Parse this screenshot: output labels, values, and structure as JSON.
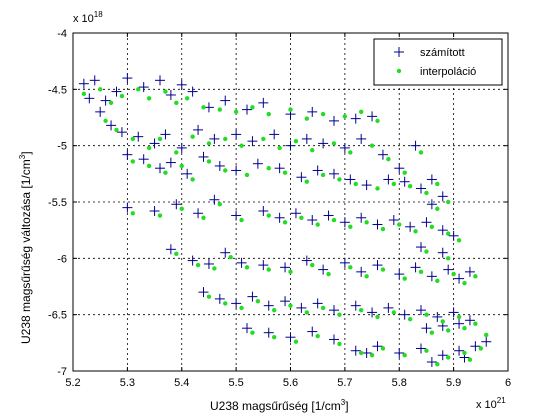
{
  "figure": {
    "ylabel_text": "U238  magsűrűség változása [1/cm",
    "ylabel_sup": "3",
    "ylabel_end": "]",
    "xlabel_text": "U238  magsűrűség [1/cm",
    "xlabel_sup": "3",
    "xlabel_end": "]",
    "y_exponent_base": "x 10",
    "y_exponent_power": "18",
    "x_exponent_base": "x 10",
    "x_exponent_power": "21"
  },
  "chart_data": {
    "type": "scatter",
    "xlim": [
      5.2,
      6.0
    ],
    "ylim": [
      -7.0,
      -4.0
    ],
    "x_scale_exponent": 21,
    "y_scale_exponent": 18,
    "xticks": [
      "5.2",
      "5.3",
      "5.4",
      "5.5",
      "5.6",
      "5.7",
      "5.8",
      "5.9",
      "6"
    ],
    "yticks": [
      "-4",
      "-4.5",
      "-5",
      "-5.5",
      "-6",
      "-6.5",
      "-7"
    ],
    "xtick_values": [
      5.2,
      5.3,
      5.4,
      5.5,
      5.6,
      5.7,
      5.8,
      5.9,
      6.0
    ],
    "ytick_values": [
      -4.0,
      -4.5,
      -5.0,
      -5.5,
      -6.0,
      -6.5,
      -7.0
    ],
    "grid": true,
    "legend_position": "top-right",
    "series": [
      {
        "name": "számított",
        "marker": "+",
        "color": "#00008b",
        "points": [
          [
            5.22,
            -4.45
          ],
          [
            5.24,
            -4.42
          ],
          [
            5.23,
            -4.58
          ],
          [
            5.26,
            -4.6
          ],
          [
            5.28,
            -4.52
          ],
          [
            5.3,
            -4.4
          ],
          [
            5.33,
            -4.48
          ],
          [
            5.36,
            -4.42
          ],
          [
            5.38,
            -4.55
          ],
          [
            5.4,
            -4.46
          ],
          [
            5.42,
            -4.52
          ],
          [
            5.45,
            -4.66
          ],
          [
            5.48,
            -4.6
          ],
          [
            5.52,
            -4.68
          ],
          [
            5.55,
            -4.62
          ],
          [
            5.6,
            -4.72
          ],
          [
            5.64,
            -4.7
          ],
          [
            5.68,
            -4.78
          ],
          [
            5.72,
            -4.76
          ],
          [
            5.75,
            -4.74
          ],
          [
            5.25,
            -4.7
          ],
          [
            5.27,
            -4.82
          ],
          [
            5.29,
            -4.88
          ],
          [
            5.32,
            -4.92
          ],
          [
            5.35,
            -4.98
          ],
          [
            5.37,
            -4.9
          ],
          [
            5.4,
            -5.02
          ],
          [
            5.43,
            -4.86
          ],
          [
            5.46,
            -4.94
          ],
          [
            5.5,
            -4.9
          ],
          [
            5.53,
            -4.96
          ],
          [
            5.57,
            -4.9
          ],
          [
            5.6,
            -5.0
          ],
          [
            5.63,
            -4.94
          ],
          [
            5.66,
            -4.98
          ],
          [
            5.7,
            -5.02
          ],
          [
            5.73,
            -4.94
          ],
          [
            5.77,
            -5.08
          ],
          [
            5.8,
            -5.2
          ],
          [
            5.83,
            -5.0
          ],
          [
            5.3,
            -5.08
          ],
          [
            5.33,
            -5.12
          ],
          [
            5.36,
            -5.2
          ],
          [
            5.38,
            -5.15
          ],
          [
            5.41,
            -5.25
          ],
          [
            5.44,
            -5.1
          ],
          [
            5.47,
            -5.18
          ],
          [
            5.5,
            -5.22
          ],
          [
            5.54,
            -5.16
          ],
          [
            5.58,
            -5.2
          ],
          [
            5.62,
            -5.28
          ],
          [
            5.65,
            -5.22
          ],
          [
            5.68,
            -5.25
          ],
          [
            5.71,
            -5.3
          ],
          [
            5.74,
            -5.35
          ],
          [
            5.78,
            -5.3
          ],
          [
            5.81,
            -5.32
          ],
          [
            5.84,
            -5.38
          ],
          [
            5.86,
            -5.3
          ],
          [
            5.88,
            -5.45
          ],
          [
            5.3,
            -5.55
          ],
          [
            5.35,
            -5.58
          ],
          [
            5.39,
            -5.52
          ],
          [
            5.43,
            -5.6
          ],
          [
            5.46,
            -5.48
          ],
          [
            5.5,
            -5.62
          ],
          [
            5.55,
            -5.58
          ],
          [
            5.58,
            -5.64
          ],
          [
            5.61,
            -5.6
          ],
          [
            5.64,
            -5.66
          ],
          [
            5.67,
            -5.62
          ],
          [
            5.7,
            -5.68
          ],
          [
            5.73,
            -5.64
          ],
          [
            5.76,
            -5.7
          ],
          [
            5.79,
            -5.66
          ],
          [
            5.82,
            -5.72
          ],
          [
            5.85,
            -5.68
          ],
          [
            5.88,
            -5.75
          ],
          [
            5.9,
            -5.8
          ],
          [
            5.86,
            -5.52
          ],
          [
            5.38,
            -5.92
          ],
          [
            5.42,
            -6.02
          ],
          [
            5.45,
            -6.05
          ],
          [
            5.48,
            -5.95
          ],
          [
            5.51,
            -6.04
          ],
          [
            5.55,
            -6.06
          ],
          [
            5.59,
            -6.08
          ],
          [
            5.63,
            -6.02
          ],
          [
            5.66,
            -6.1
          ],
          [
            5.7,
            -6.04
          ],
          [
            5.73,
            -6.12
          ],
          [
            5.76,
            -6.06
          ],
          [
            5.8,
            -6.14
          ],
          [
            5.83,
            -6.08
          ],
          [
            5.86,
            -6.16
          ],
          [
            5.89,
            -6.1
          ],
          [
            5.91,
            -6.18
          ],
          [
            5.93,
            -6.12
          ],
          [
            5.88,
            -5.95
          ],
          [
            5.84,
            -5.9
          ],
          [
            5.44,
            -6.3
          ],
          [
            5.47,
            -6.36
          ],
          [
            5.5,
            -6.4
          ],
          [
            5.53,
            -6.34
          ],
          [
            5.56,
            -6.42
          ],
          [
            5.59,
            -6.38
          ],
          [
            5.62,
            -6.44
          ],
          [
            5.65,
            -6.4
          ],
          [
            5.68,
            -6.46
          ],
          [
            5.72,
            -6.42
          ],
          [
            5.75,
            -6.48
          ],
          [
            5.78,
            -6.44
          ],
          [
            5.81,
            -6.5
          ],
          [
            5.84,
            -6.46
          ],
          [
            5.87,
            -6.52
          ],
          [
            5.9,
            -6.48
          ],
          [
            5.93,
            -6.55
          ],
          [
            5.91,
            -6.58
          ],
          [
            5.88,
            -6.6
          ],
          [
            5.85,
            -6.62
          ],
          [
            5.52,
            -6.62
          ],
          [
            5.56,
            -6.66
          ],
          [
            5.6,
            -6.7
          ],
          [
            5.64,
            -6.65
          ],
          [
            5.68,
            -6.72
          ],
          [
            5.72,
            -6.82
          ],
          [
            5.76,
            -6.78
          ],
          [
            5.8,
            -6.84
          ],
          [
            5.84,
            -6.8
          ],
          [
            5.88,
            -6.86
          ],
          [
            5.91,
            -6.82
          ],
          [
            5.94,
            -6.78
          ],
          [
            5.96,
            -6.74
          ],
          [
            5.92,
            -6.88
          ],
          [
            5.86,
            -6.92
          ],
          [
            5.74,
            -6.84
          ]
        ]
      },
      {
        "name": "interpoláció",
        "marker": "dot",
        "color": "#22dd22",
        "points": [
          [
            5.22,
            -4.54
          ],
          [
            5.25,
            -4.5
          ],
          [
            5.27,
            -4.62
          ],
          [
            5.29,
            -4.56
          ],
          [
            5.32,
            -4.5
          ],
          [
            5.34,
            -4.58
          ],
          [
            5.37,
            -4.52
          ],
          [
            5.39,
            -4.62
          ],
          [
            5.41,
            -4.58
          ],
          [
            5.44,
            -4.66
          ],
          [
            5.47,
            -4.68
          ],
          [
            5.5,
            -4.7
          ],
          [
            5.53,
            -4.66
          ],
          [
            5.56,
            -4.72
          ],
          [
            5.6,
            -4.68
          ],
          [
            5.63,
            -4.76
          ],
          [
            5.66,
            -4.72
          ],
          [
            5.7,
            -4.74
          ],
          [
            5.73,
            -4.7
          ],
          [
            5.76,
            -4.78
          ],
          [
            5.26,
            -4.78
          ],
          [
            5.28,
            -4.86
          ],
          [
            5.31,
            -4.94
          ],
          [
            5.34,
            -5.02
          ],
          [
            5.36,
            -4.94
          ],
          [
            5.39,
            -5.06
          ],
          [
            5.42,
            -4.92
          ],
          [
            5.45,
            -4.98
          ],
          [
            5.48,
            -4.94
          ],
          [
            5.51,
            -5.0
          ],
          [
            5.55,
            -4.94
          ],
          [
            5.58,
            -5.02
          ],
          [
            5.61,
            -4.96
          ],
          [
            5.64,
            -5.04
          ],
          [
            5.68,
            -4.98
          ],
          [
            5.71,
            -5.06
          ],
          [
            5.75,
            -5.0
          ],
          [
            5.78,
            -5.12
          ],
          [
            5.81,
            -5.24
          ],
          [
            5.84,
            -5.06
          ],
          [
            5.31,
            -5.14
          ],
          [
            5.34,
            -5.18
          ],
          [
            5.37,
            -5.24
          ],
          [
            5.4,
            -5.18
          ],
          [
            5.42,
            -5.3
          ],
          [
            5.45,
            -5.14
          ],
          [
            5.48,
            -5.22
          ],
          [
            5.52,
            -5.26
          ],
          [
            5.56,
            -5.2
          ],
          [
            5.59,
            -5.24
          ],
          [
            5.63,
            -5.32
          ],
          [
            5.66,
            -5.26
          ],
          [
            5.69,
            -5.3
          ],
          [
            5.72,
            -5.34
          ],
          [
            5.76,
            -5.38
          ],
          [
            5.79,
            -5.34
          ],
          [
            5.82,
            -5.36
          ],
          [
            5.85,
            -5.42
          ],
          [
            5.87,
            -5.34
          ],
          [
            5.89,
            -5.5
          ],
          [
            5.31,
            -5.6
          ],
          [
            5.36,
            -5.62
          ],
          [
            5.4,
            -5.56
          ],
          [
            5.44,
            -5.64
          ],
          [
            5.47,
            -5.52
          ],
          [
            5.51,
            -5.66
          ],
          [
            5.56,
            -5.62
          ],
          [
            5.59,
            -5.68
          ],
          [
            5.62,
            -5.64
          ],
          [
            5.65,
            -5.7
          ],
          [
            5.68,
            -5.66
          ],
          [
            5.71,
            -5.72
          ],
          [
            5.74,
            -5.68
          ],
          [
            5.77,
            -5.74
          ],
          [
            5.8,
            -5.7
          ],
          [
            5.83,
            -5.76
          ],
          [
            5.86,
            -5.72
          ],
          [
            5.89,
            -5.78
          ],
          [
            5.91,
            -5.84
          ],
          [
            5.87,
            -5.56
          ],
          [
            5.39,
            -5.96
          ],
          [
            5.43,
            -6.06
          ],
          [
            5.46,
            -6.09
          ],
          [
            5.49,
            -5.99
          ],
          [
            5.52,
            -6.08
          ],
          [
            5.56,
            -6.1
          ],
          [
            5.6,
            -6.12
          ],
          [
            5.64,
            -6.06
          ],
          [
            5.67,
            -6.14
          ],
          [
            5.71,
            -6.08
          ],
          [
            5.74,
            -6.16
          ],
          [
            5.77,
            -6.1
          ],
          [
            5.81,
            -6.18
          ],
          [
            5.84,
            -6.12
          ],
          [
            5.87,
            -6.2
          ],
          [
            5.9,
            -6.14
          ],
          [
            5.92,
            -6.22
          ],
          [
            5.94,
            -6.16
          ],
          [
            5.89,
            -6.0
          ],
          [
            5.85,
            -5.94
          ],
          [
            5.45,
            -6.34
          ],
          [
            5.48,
            -6.4
          ],
          [
            5.51,
            -6.44
          ],
          [
            5.54,
            -6.38
          ],
          [
            5.57,
            -6.46
          ],
          [
            5.6,
            -6.42
          ],
          [
            5.63,
            -6.48
          ],
          [
            5.66,
            -6.44
          ],
          [
            5.69,
            -6.5
          ],
          [
            5.73,
            -6.46
          ],
          [
            5.76,
            -6.52
          ],
          [
            5.79,
            -6.48
          ],
          [
            5.82,
            -6.54
          ],
          [
            5.85,
            -6.5
          ],
          [
            5.88,
            -6.56
          ],
          [
            5.91,
            -6.52
          ],
          [
            5.94,
            -6.58
          ],
          [
            5.92,
            -6.62
          ],
          [
            5.89,
            -6.64
          ],
          [
            5.86,
            -6.66
          ],
          [
            5.53,
            -6.66
          ],
          [
            5.57,
            -6.7
          ],
          [
            5.61,
            -6.74
          ],
          [
            5.65,
            -6.69
          ],
          [
            5.69,
            -6.76
          ],
          [
            5.73,
            -6.84
          ],
          [
            5.77,
            -6.8
          ],
          [
            5.81,
            -6.86
          ],
          [
            5.85,
            -6.82
          ],
          [
            5.89,
            -6.88
          ],
          [
            5.92,
            -6.84
          ],
          [
            5.95,
            -6.8
          ],
          [
            5.96,
            -6.68
          ],
          [
            5.93,
            -6.9
          ],
          [
            5.87,
            -6.94
          ],
          [
            5.75,
            -6.86
          ]
        ]
      }
    ]
  }
}
